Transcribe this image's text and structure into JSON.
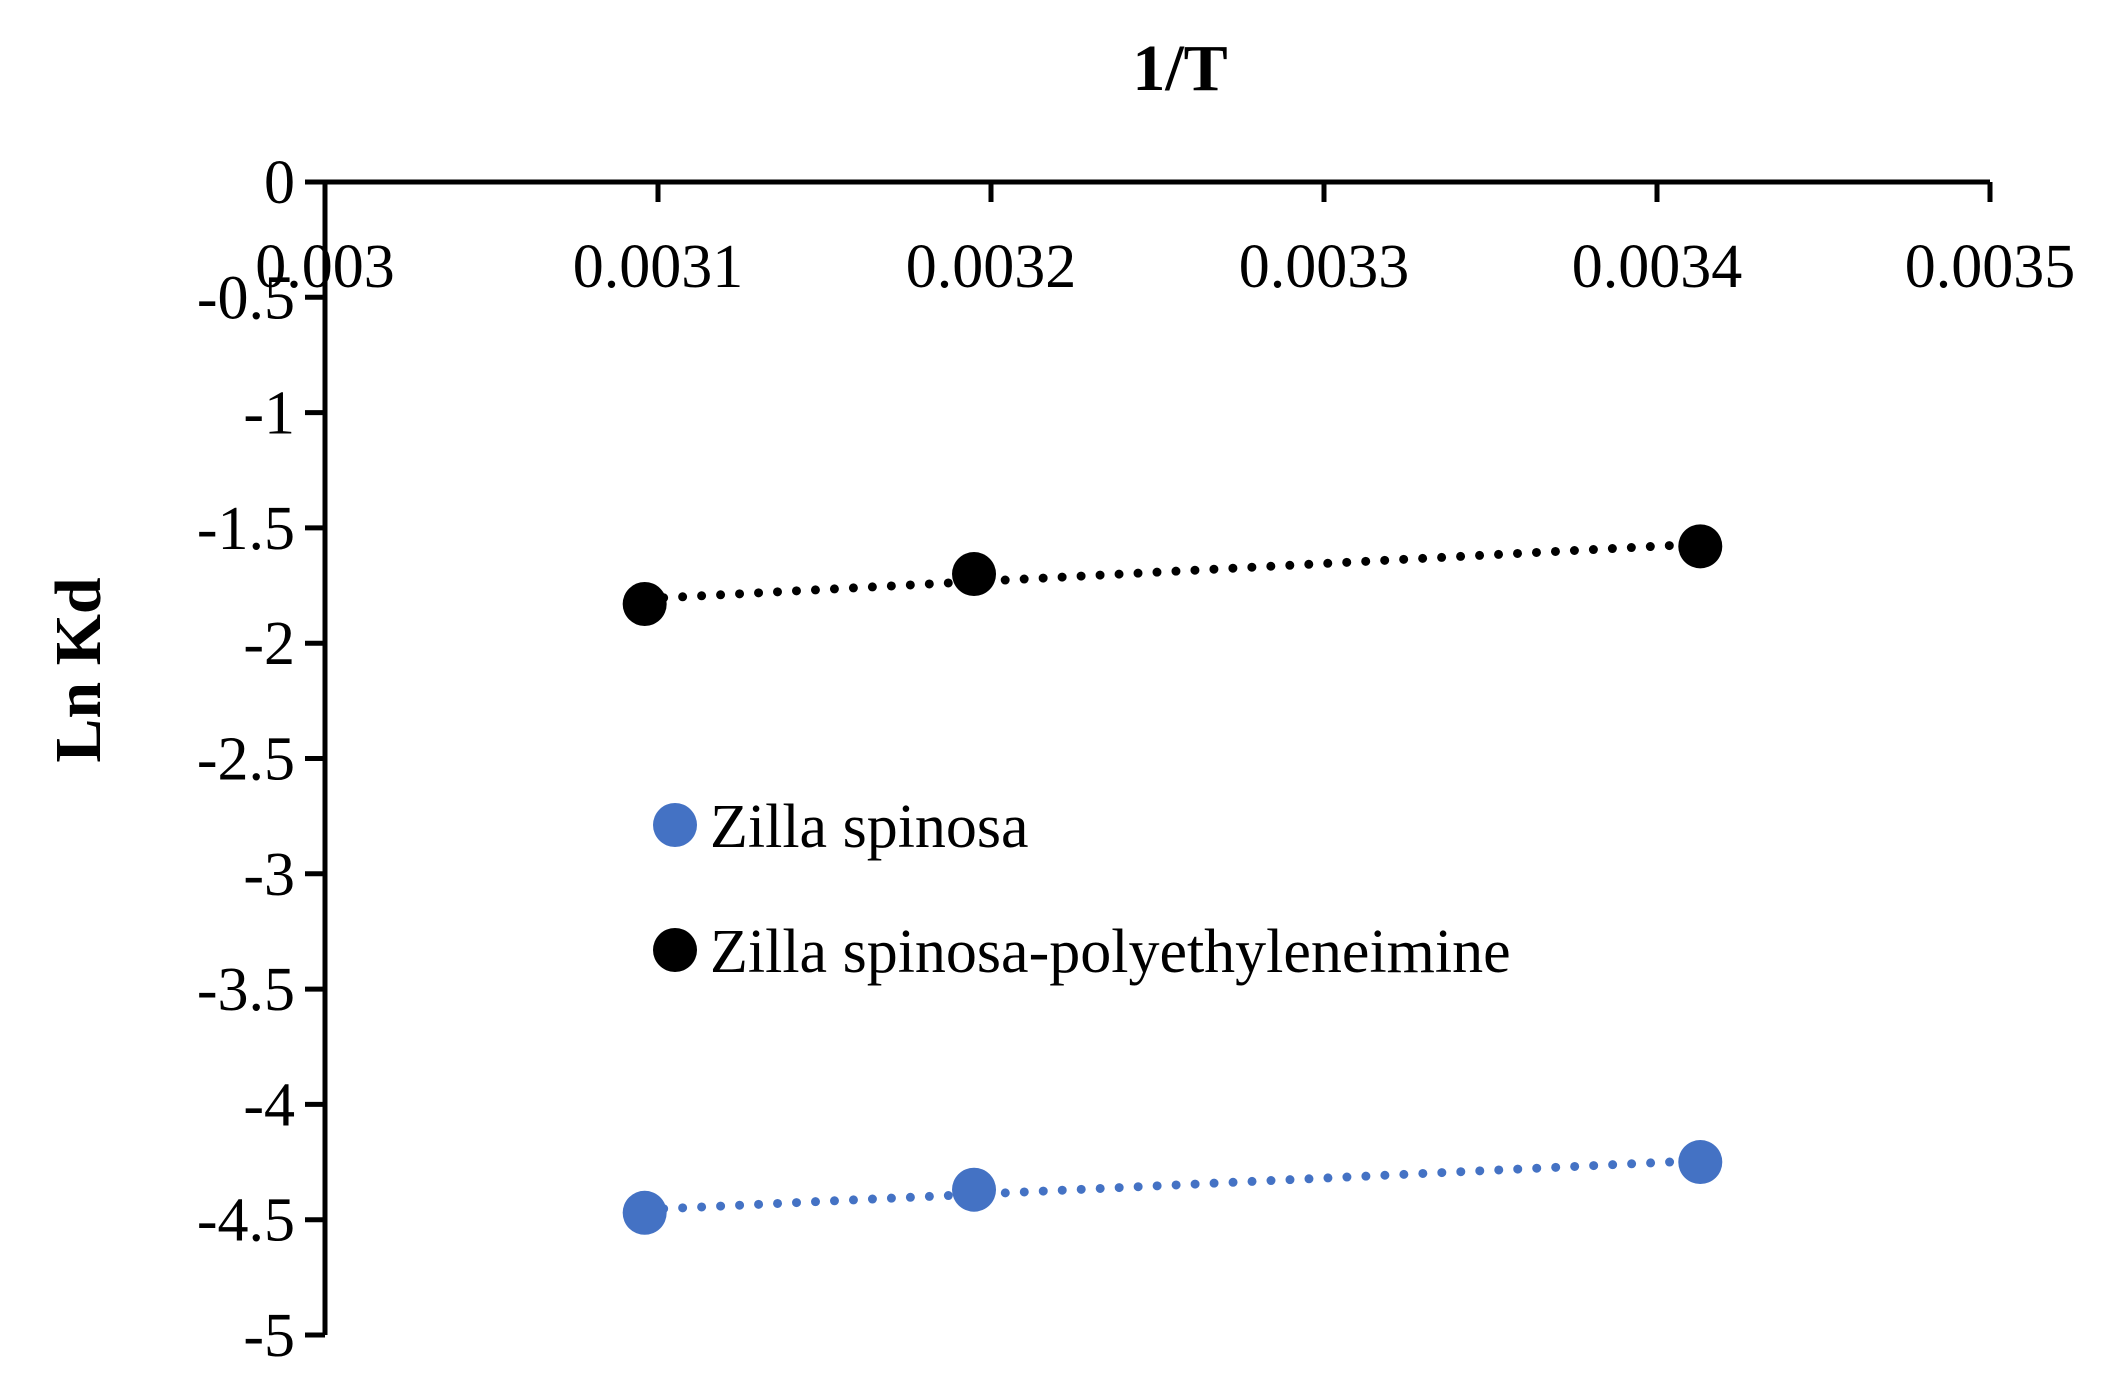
{
  "chart_data": {
    "type": "scatter",
    "title": "",
    "xlabel": "1/T",
    "ylabel": "Ln Kd",
    "xlim": [
      0.003,
      0.0035
    ],
    "ylim": [
      -5,
      0
    ],
    "xticks": [
      "0.003",
      "0.0031",
      "0.0032",
      "0.0033",
      "0.0034",
      "0.0035"
    ],
    "yticks": [
      "0",
      "-0.5",
      "-1",
      "-1.5",
      "-2",
      "-2.5",
      "-3",
      "-3.5",
      "-4",
      "-4.5",
      "-5"
    ],
    "grid": false,
    "x_axis_position": "top",
    "legend_position": "center",
    "series": [
      {
        "name": "Zilla spinosa",
        "color": "#4472C4",
        "trendline": "dotted-linear",
        "x": [
          0.003096,
          0.0031949,
          0.003413
        ],
        "y": [
          -4.47,
          -4.37,
          -4.25
        ]
      },
      {
        "name": "Zilla spinosa-polyethyleneimine",
        "color": "#000000",
        "trendline": "dotted-linear",
        "x": [
          0.003096,
          0.0031949,
          0.003413
        ],
        "y": [
          -1.83,
          -1.7,
          -1.58
        ]
      }
    ]
  }
}
